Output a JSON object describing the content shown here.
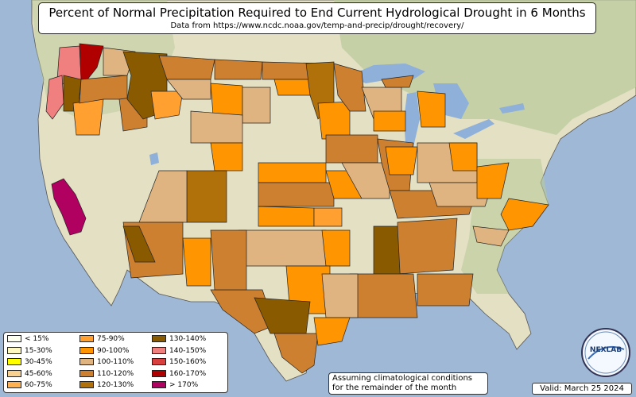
{
  "title": "Percent of Normal Precipitation Required to End Current Hydrological Drought in 6 Months",
  "subtitle": "Data from https://www.ncdc.noaa.gov/temp-and-precip/drought/recovery/",
  "note_line1": "Assuming climatological conditions",
  "note_line2": "for the remainder of the month",
  "valid": "Valid: March 25 2024",
  "logo_text": "NEXLAB",
  "colors": {
    "ocean": "#9fb8d6",
    "land": "#e4e0c4",
    "land_green": "#b9c99a",
    "lake": "#8fb0d8",
    "border": "#333333"
  },
  "legend": [
    {
      "label": "< 15%",
      "color": "#fffff0"
    },
    {
      "label": "15-30%",
      "color": "#fff8c0"
    },
    {
      "label": "30-45%",
      "color": "#ffff00"
    },
    {
      "label": "45-60%",
      "color": "#f8d090"
    },
    {
      "label": "60-75%",
      "color": "#ffb050"
    },
    {
      "label": "75-90%",
      "color": "#ffa030"
    },
    {
      "label": "90-100%",
      "color": "#ff9500"
    },
    {
      "label": "100-110%",
      "color": "#e0b480"
    },
    {
      "label": "110-120%",
      "color": "#cc8030"
    },
    {
      "label": "120-130%",
      "color": "#b0700a"
    },
    {
      "label": "130-140%",
      "color": "#8a5a00"
    },
    {
      "label": "140-150%",
      "color": "#f08080"
    },
    {
      "label": "150-160%",
      "color": "#d84040"
    },
    {
      "label": "160-170%",
      "color": "#b00000"
    },
    {
      "label": "> 170%",
      "color": "#b00060"
    }
  ]
}
